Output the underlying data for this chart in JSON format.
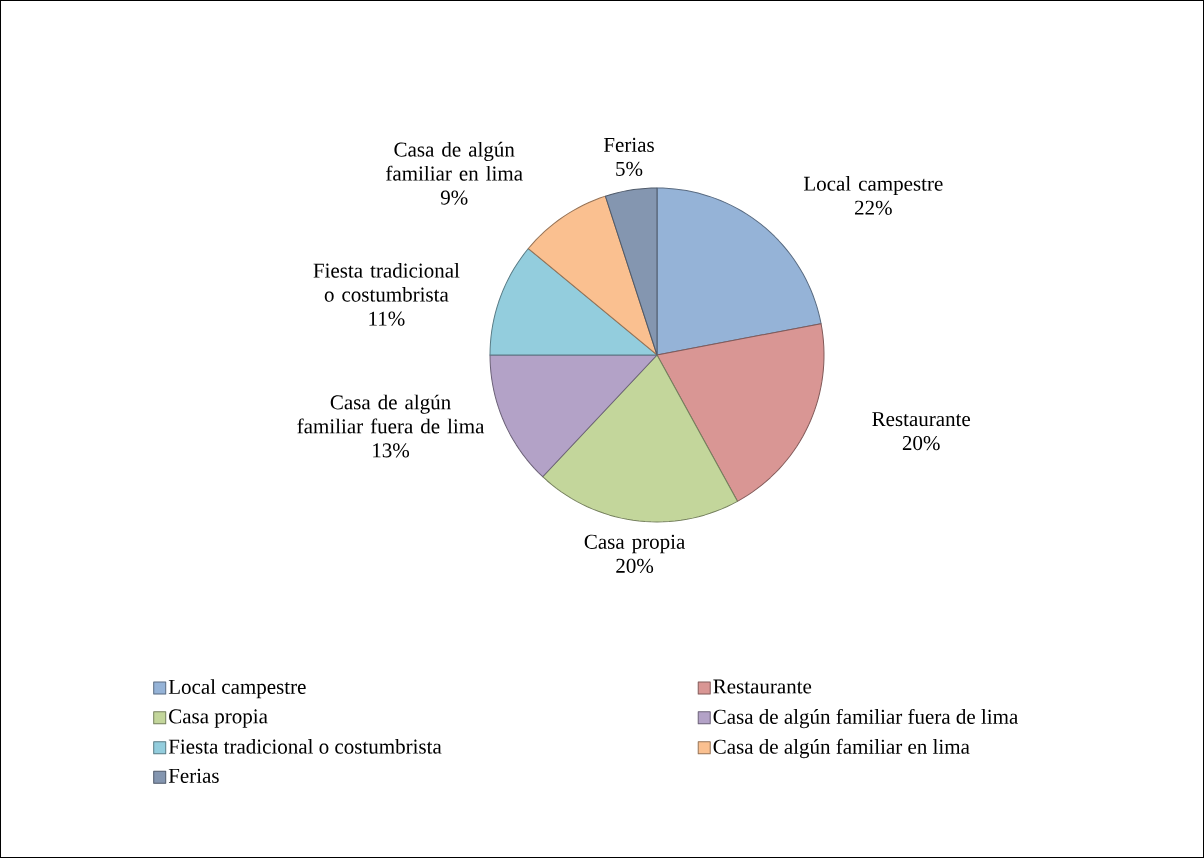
{
  "chart_data": {
    "type": "pie",
    "categories": [
      "Local campestre",
      "Restaurante",
      "Casa propia",
      "Casa de algún familiar fuera de lima",
      "Fiesta tradicional o costumbrista",
      "Casa de algún familiar en lima",
      "Ferias"
    ],
    "values": [
      22,
      20,
      20,
      13,
      11,
      9,
      5
    ],
    "value_labels": [
      "22%",
      "20%",
      "20%",
      "13%",
      "11%",
      "9%",
      "5%"
    ],
    "colors": [
      "#95b3d7",
      "#d99694",
      "#c3d69b",
      "#b3a2c7",
      "#93cddd",
      "#fac090",
      "#8496b0"
    ],
    "legend": "bottom"
  }
}
